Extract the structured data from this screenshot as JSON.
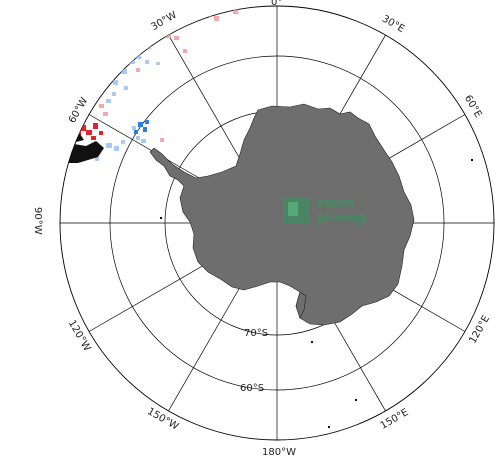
{
  "map": {
    "projection": "south-polar-stereographic",
    "land_color": "#6e6e6e",
    "meridians": [
      {
        "label": "30°W"
      },
      {
        "label": "0°"
      },
      {
        "label": "30°E"
      },
      {
        "label": "60°E"
      },
      {
        "label": "120°E"
      },
      {
        "label": "150°E"
      },
      {
        "label": "180°W"
      },
      {
        "label": "150°W"
      },
      {
        "label": "120°W"
      },
      {
        "label": "90°W"
      },
      {
        "label": "60°W"
      }
    ],
    "parallels": [
      {
        "label": "70°S"
      },
      {
        "label": "60°S"
      }
    ],
    "watermark": {
      "line1": "smos",
      "line2": "pi-mep",
      "color": "#2e9a5e"
    },
    "data_colors": {
      "positive": "#e8202a",
      "negative": "#2f7de0",
      "positive_light": "#f4a8ae",
      "negative_light": "#a9cbf3"
    }
  }
}
